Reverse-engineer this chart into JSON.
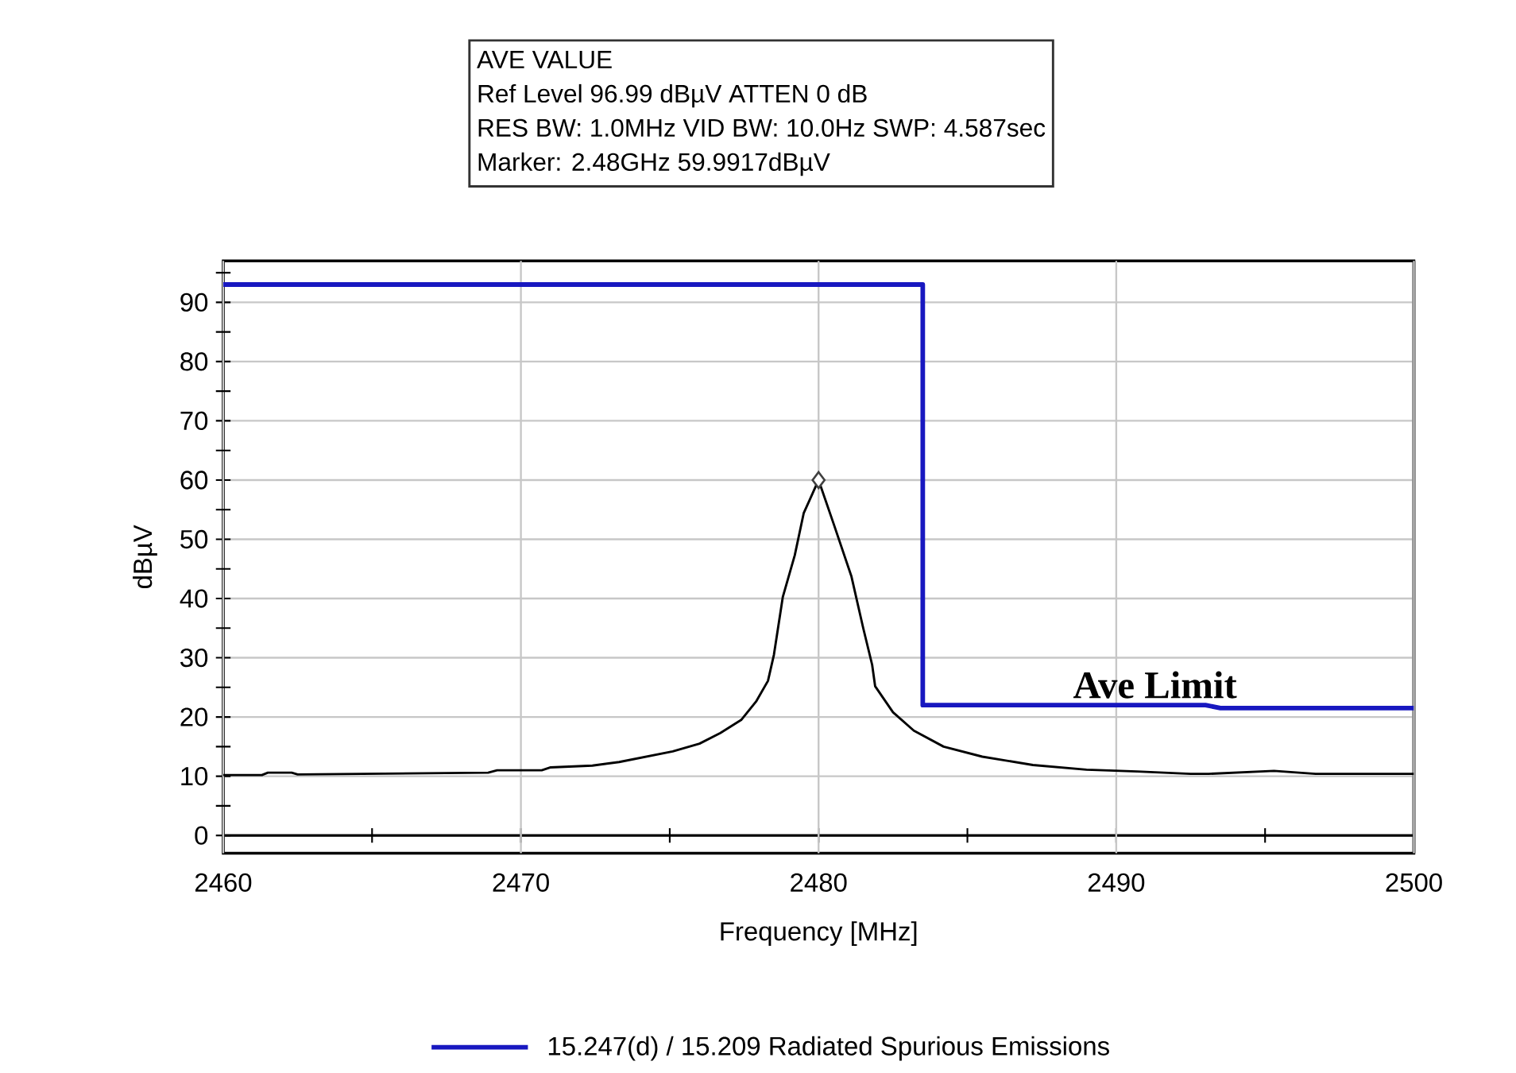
{
  "chart_data": {
    "type": "line",
    "title": "AVE VALUE",
    "annotations": [
      "Ref Level 96.99 dBµV ATTEN 0 dB",
      "RES BW: 1.0MHz VID BW: 10.0Hz SWP: 4.587sec",
      "Marker: 2.48GHz 59.9917dBµV",
      {
        "text": "Ave Limit",
        "x": 2491.3,
        "y": 22
      }
    ],
    "xlabel": "Frequency [MHz]",
    "ylabel": "dBµV",
    "xlim": [
      2460,
      2500
    ],
    "ylim": [
      -3,
      97
    ],
    "xticks": [
      2460,
      {
        "value": 2465,
        "label": null
      },
      2470,
      {
        "value": 2475,
        "label": null
      },
      2480,
      {
        "value": 2485,
        "label": null
      },
      2490,
      {
        "value": 2495,
        "label": null
      },
      2500
    ],
    "yticks": [
      0,
      {
        "value": 5,
        "label": null
      },
      10,
      {
        "value": 15,
        "label": null
      },
      20,
      {
        "value": 25,
        "label": null
      },
      30,
      {
        "value": 35,
        "label": null
      },
      40,
      {
        "value": 45,
        "label": null
      },
      50,
      {
        "value": 55,
        "label": null
      },
      60,
      {
        "value": 65,
        "label": null
      },
      70,
      {
        "value": 75,
        "label": null
      },
      80,
      {
        "value": 85,
        "label": null
      },
      90,
      {
        "value": 95,
        "label": null
      }
    ],
    "grid": true,
    "legend": "bottom",
    "series": [
      {
        "name": "15.247(d) / 15.209 Radiated Spurious Emissions",
        "color": "#1818c0",
        "x": [
          2460,
          2483.5,
          2483.5,
          2493,
          2493.5,
          2500
        ],
        "values": [
          93,
          93,
          22,
          22,
          21.5,
          21.5
        ]
      },
      {
        "color": "#000000",
        "x": [
          2460,
          2461.3,
          2461.5,
          2462.3,
          2462.5,
          2468.9,
          2469.2,
          2470.7,
          2471,
          2472.4,
          2473.3,
          2474.2,
          2475.1,
          2476,
          2476.7,
          2477.4,
          2477.9,
          2478.3,
          2478.5,
          2478.8,
          2479.2,
          2479.5,
          2480,
          2480.5,
          2481.1,
          2481.5,
          2481.8,
          2481.9,
          2482.5,
          2483.2,
          2484.2,
          2485.5,
          2487.2,
          2489,
          2490.7,
          2491.6,
          2492.5,
          2493.1,
          2495.3,
          2496.7,
          2500
        ],
        "values": [
          10.2,
          10.2,
          10.6,
          10.6,
          10.3,
          10.6,
          11,
          11,
          11.5,
          11.8,
          12.4,
          13.3,
          14.2,
          15.5,
          17.3,
          19.5,
          22.6,
          26.1,
          30.5,
          40.3,
          47.3,
          54.4,
          60,
          52.7,
          43.8,
          35,
          28.8,
          25.2,
          20.8,
          17.7,
          15,
          13.3,
          11.9,
          11.1,
          10.8,
          10.6,
          10.4,
          10.4,
          10.9,
          10.4,
          10.4
        ]
      },
      {
        "type": "scatter",
        "marker": "diamond",
        "color": "#404040",
        "x": [
          2480
        ],
        "values": [
          60
        ]
      }
    ]
  }
}
